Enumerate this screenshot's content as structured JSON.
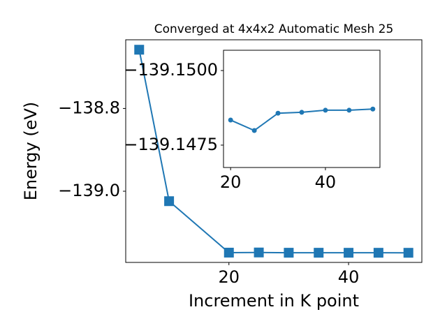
{
  "chart_data": [
    {
      "type": "line",
      "title": "Converged at 4x4x2 Automatic Mesh 25",
      "x_label": "Increment in K point",
      "y_label": "Energy (eV)",
      "x": [
        5,
        10,
        20,
        25,
        30,
        35,
        40,
        45,
        50
      ],
      "series": [
        {
          "color": "#1f77b4",
          "marker": "square",
          "values": [
            -138.658,
            -139.024,
            -139.14834,
            -139.14799,
            -139.14857,
            -139.1486,
            -139.14867,
            -139.14867,
            -139.14871
          ]
        }
      ],
      "xlim": [
        2.75,
        52.25
      ],
      "xticks": [
        20,
        40
      ],
      "ylim": [
        -139.172,
        -138.634
      ],
      "yticks": [
        {
          "value": -139.0,
          "label": "−139.0"
        },
        {
          "value": -138.8,
          "label": "−138.8"
        }
      ]
    },
    {
      "type": "line",
      "x": [
        20,
        25,
        30,
        35,
        40,
        45,
        50
      ],
      "series": [
        {
          "color": "#1f77b4",
          "marker": "circle",
          "values": [
            -139.14834,
            -139.14799,
            -139.14857,
            -139.1486,
            -139.14867,
            -139.14867,
            -139.14871
          ]
        }
      ],
      "xlim": [
        18.5,
        51.5
      ],
      "xticks": [
        20,
        40
      ],
      "ylim": [
        -139.14675,
        -139.15068
      ],
      "yticks": [
        {
          "value": -139.1475,
          "label": "−139.1475"
        },
        {
          "value": -139.15,
          "label": "−139.1500"
        }
      ]
    }
  ]
}
